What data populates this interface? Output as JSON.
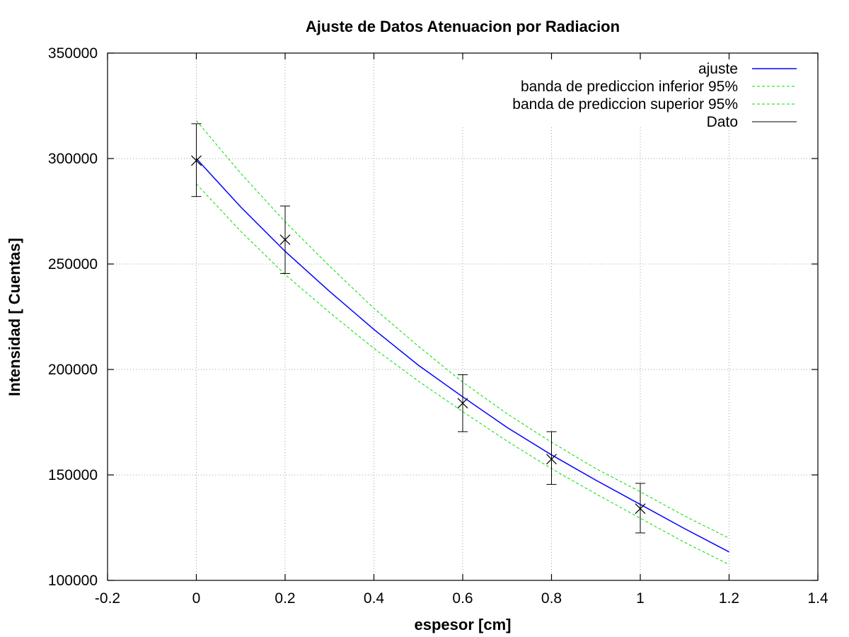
{
  "chart_data": {
    "type": "line",
    "title": "Ajuste de Datos Atenuacion por Radiacion",
    "xlabel": "espesor [cm]",
    "ylabel": "Intensidad [ Cuentas]",
    "xlim": [
      -0.2,
      1.4
    ],
    "ylim": [
      100000,
      350000
    ],
    "xticks": [
      -0.2,
      0,
      0.2,
      0.4,
      0.6,
      0.8,
      1,
      1.2,
      1.4
    ],
    "xtick_labels": [
      "-0.2",
      "0",
      "0.2",
      "0.4",
      "0.6",
      "0.8",
      "1",
      "1.2",
      "1.4"
    ],
    "yticks": [
      100000,
      150000,
      200000,
      250000,
      300000,
      350000
    ],
    "ytick_labels": [
      "100000",
      "150000",
      "200000",
      "250000",
      "300000",
      "350000"
    ],
    "grid": true,
    "legend_position": "top-right",
    "series": [
      {
        "name": "ajuste",
        "style": "solid",
        "color": "#0000ff",
        "x": [
          0,
          0.1,
          0.2,
          0.3,
          0.4,
          0.5,
          0.6,
          0.7,
          0.8,
          0.9,
          1.0,
          1.1,
          1.2
        ],
        "y": [
          300000,
          277000,
          256000,
          237000,
          219000,
          202000,
          187000,
          172500,
          159500,
          147500,
          136000,
          124500,
          113500
        ]
      },
      {
        "name": "banda de prediccion inferior 95%",
        "style": "dashed",
        "color": "#00e000",
        "x": [
          0,
          0.1,
          0.2,
          0.3,
          0.4,
          0.5,
          0.6,
          0.7,
          0.8,
          0.9,
          1.0,
          1.1,
          1.2
        ],
        "y": [
          288000,
          265500,
          245000,
          227000,
          210000,
          194500,
          180000,
          166000,
          153000,
          141000,
          129500,
          118000,
          107500
        ]
      },
      {
        "name": "banda de prediccion superior 95%",
        "style": "dashed",
        "color": "#00e000",
        "x": [
          0,
          0.1,
          0.2,
          0.3,
          0.4,
          0.5,
          0.6,
          0.7,
          0.8,
          0.9,
          1.0,
          1.1,
          1.2
        ],
        "y": [
          318000,
          293000,
          270000,
          249000,
          229000,
          211000,
          194000,
          179000,
          165500,
          153000,
          142000,
          130500,
          120000
        ]
      },
      {
        "name": "Dato",
        "style": "errorbars",
        "color": "#000000",
        "x": [
          0,
          0.2,
          0.6,
          0.8,
          1.0
        ],
        "y": [
          299000,
          261500,
          184000,
          157500,
          134000
        ],
        "y_low": [
          282000,
          245500,
          170500,
          145500,
          122500
        ],
        "y_high": [
          316500,
          277500,
          197500,
          170500,
          146000
        ]
      }
    ]
  }
}
